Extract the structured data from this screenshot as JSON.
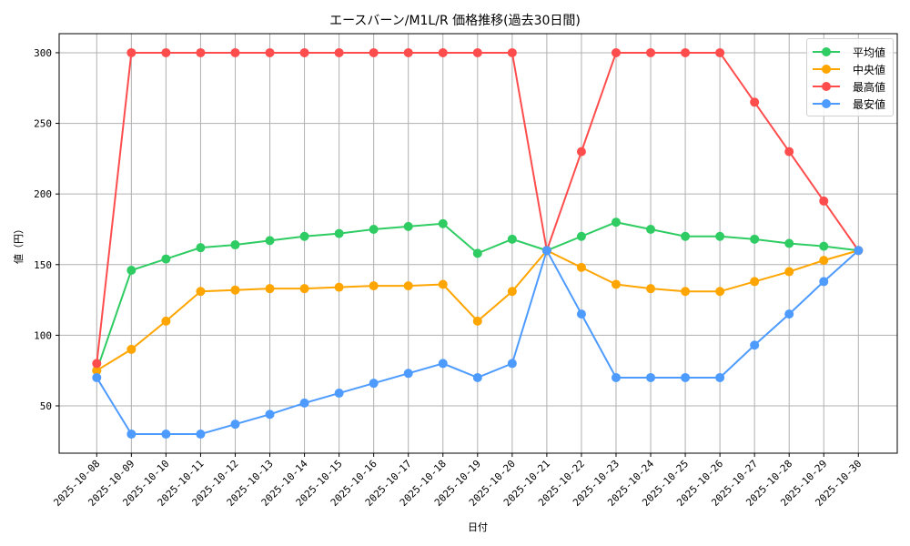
{
  "chart_data": {
    "type": "line",
    "title": "エースバーン/M1L/R 価格推移(過去30日間)",
    "xlabel": "日付",
    "ylabel": "値（円）",
    "ylim": [
      16.5,
      313.5
    ],
    "yticks": [
      50,
      100,
      150,
      200,
      250,
      300
    ],
    "grid": true,
    "legend_position": "upper right",
    "categories": [
      "2025-10-08",
      "2025-10-09",
      "2025-10-10",
      "2025-10-11",
      "2025-10-12",
      "2025-10-13",
      "2025-10-14",
      "2025-10-15",
      "2025-10-16",
      "2025-10-17",
      "2025-10-18",
      "2025-10-19",
      "2025-10-20",
      "2025-10-21",
      "2025-10-22",
      "2025-10-23",
      "2025-10-24",
      "2025-10-25",
      "2025-10-26",
      "2025-10-27",
      "2025-10-28",
      "2025-10-29",
      "2025-10-30"
    ],
    "series": [
      {
        "name": "平均値",
        "color": "#2ECC62",
        "values": [
          75,
          146,
          154,
          162,
          164,
          167,
          170,
          172,
          175,
          177,
          179,
          158,
          168,
          160,
          170,
          180,
          175,
          170,
          170,
          168,
          165,
          163,
          160
        ]
      },
      {
        "name": "中央値",
        "color": "#FFA500",
        "values": [
          75,
          90,
          110,
          131,
          132,
          133,
          133,
          134,
          135,
          135,
          136,
          110,
          131,
          160,
          148,
          136,
          133,
          131,
          131,
          138,
          145,
          153,
          160
        ]
      },
      {
        "name": "最高値",
        "color": "#FF4D4D",
        "values": [
          80,
          300,
          300,
          300,
          300,
          300,
          300,
          300,
          300,
          300,
          300,
          300,
          300,
          160,
          230,
          300,
          300,
          300,
          300,
          265,
          230,
          195,
          160
        ]
      },
      {
        "name": "最安値",
        "color": "#4D9BFF",
        "values": [
          70,
          30,
          30,
          30,
          37,
          44,
          52,
          59,
          66,
          73,
          80,
          70,
          80,
          160,
          115,
          70,
          70,
          70,
          70,
          93,
          115,
          138,
          160
        ]
      }
    ]
  },
  "legend": {
    "items": [
      {
        "label": "平均値",
        "color": "#2ECC62"
      },
      {
        "label": "中央値",
        "color": "#FFA500"
      },
      {
        "label": "最高値",
        "color": "#FF4D4D"
      },
      {
        "label": "最安値",
        "color": "#4D9BFF"
      }
    ]
  }
}
